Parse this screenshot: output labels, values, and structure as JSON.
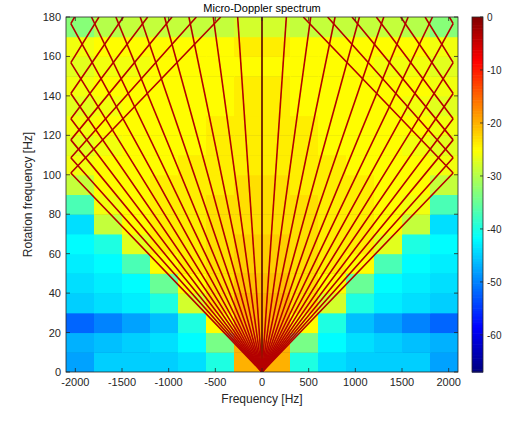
{
  "chart_data": {
    "type": "heatmap",
    "title": "Micro-Doppler spectrum",
    "x_label": "Frequency [Hz]",
    "y_label": "Rotation frequency [Hz]",
    "xlim": [
      -2100,
      2100
    ],
    "ylim": [
      0,
      180
    ],
    "xticks": [
      -2000,
      -1500,
      -1000,
      -500,
      0,
      500,
      1000,
      1500,
      2000
    ],
    "yticks": [
      0,
      20,
      40,
      60,
      80,
      100,
      120,
      140,
      160,
      180
    ],
    "grid": false,
    "clim": [
      -67,
      0
    ],
    "cticks": [
      0,
      -10,
      -20,
      -30,
      -40,
      -50,
      -60
    ],
    "x": [
      -1950,
      -1650,
      -1350,
      -1050,
      -750,
      -450,
      -150,
      150,
      450,
      750,
      1050,
      1350,
      1650,
      1950
    ],
    "y": [
      5,
      15,
      25,
      35,
      45,
      55,
      65,
      75,
      85,
      95,
      105,
      115,
      125,
      135,
      145,
      155,
      165,
      175
    ],
    "cells": [
      [
        -48,
        -45,
        -45,
        -45,
        -44,
        -40,
        -20,
        -20,
        -40,
        -44,
        -45,
        -45,
        -45,
        -48
      ],
      [
        -47,
        -46,
        -45,
        -44,
        -42,
        -34,
        -20,
        -20,
        -34,
        -42,
        -44,
        -45,
        -46,
        -47
      ],
      [
        -52,
        -50,
        -48,
        -46,
        -40,
        -25,
        -20,
        -20,
        -25,
        -40,
        -46,
        -48,
        -50,
        -52
      ],
      [
        -45,
        -44,
        -43,
        -40,
        -28,
        -23,
        -20,
        -20,
        -23,
        -28,
        -40,
        -43,
        -44,
        -45
      ],
      [
        -44,
        -43,
        -42,
        -35,
        -25,
        -23,
        -21,
        -21,
        -23,
        -25,
        -35,
        -42,
        -43,
        -44
      ],
      [
        -43,
        -42,
        -37,
        -25,
        -24,
        -23,
        -22,
        -22,
        -23,
        -24,
        -25,
        -37,
        -42,
        -43
      ],
      [
        -42,
        -40,
        -27,
        -24,
        -24,
        -23,
        -22,
        -22,
        -23,
        -24,
        -24,
        -27,
        -40,
        -42
      ],
      [
        -44,
        -29,
        -25,
        -24,
        -24,
        -23,
        -23,
        -23,
        -23,
        -24,
        -24,
        -25,
        -29,
        -44
      ],
      [
        -37,
        -26,
        -25,
        -24,
        -24,
        -23,
        -23,
        -23,
        -23,
        -24,
        -24,
        -25,
        -26,
        -37
      ],
      [
        -29,
        -25,
        -25,
        -24,
        -24,
        -24,
        -23,
        -23,
        -24,
        -24,
        -24,
        -25,
        -25,
        -29
      ],
      [
        -26,
        -25,
        -25,
        -25,
        -24,
        -24,
        -24,
        -24,
        -24,
        -24,
        -25,
        -25,
        -25,
        -26
      ],
      [
        -27,
        -26,
        -25,
        -25,
        -25,
        -24,
        -24,
        -24,
        -24,
        -25,
        -25,
        -25,
        -26,
        -27
      ],
      [
        -26,
        -25,
        -25,
        -25,
        -25,
        -24,
        -24,
        -24,
        -24,
        -25,
        -25,
        -25,
        -25,
        -26
      ],
      [
        -27,
        -26,
        -25,
        -25,
        -25,
        -25,
        -24,
        -24,
        -25,
        -25,
        -25,
        -25,
        -26,
        -27
      ],
      [
        -26,
        -25,
        -25,
        -25,
        -25,
        -25,
        -24,
        -24,
        -25,
        -25,
        -25,
        -25,
        -25,
        -26
      ],
      [
        -27,
        -26,
        -26,
        -25,
        -25,
        -25,
        -25,
        -25,
        -25,
        -25,
        -25,
        -26,
        -26,
        -27
      ],
      [
        -26,
        -25,
        -25,
        -25,
        -25,
        -25,
        -24,
        -24,
        -25,
        -25,
        -25,
        -25,
        -25,
        -26
      ],
      [
        -33,
        -30,
        -29,
        -29,
        -29,
        -29,
        -28,
        -28,
        -29,
        -29,
        -29,
        -29,
        -30,
        -33
      ]
    ],
    "series": [
      {
        "type": "line",
        "color": "#5a0000",
        "x": [
          0,
          0
        ],
        "values": [
          0,
          180
        ]
      },
      {
        "type": "line",
        "color": "#b40000",
        "x": [
          0,
          261
        ],
        "values": [
          0,
          180
        ]
      },
      {
        "type": "line",
        "color": "#b40000",
        "x": [
          0,
          522
        ],
        "values": [
          0,
          180
        ]
      },
      {
        "type": "line",
        "color": "#b40000",
        "x": [
          0,
          783
        ],
        "values": [
          0,
          180
        ]
      },
      {
        "type": "line",
        "color": "#b40000",
        "x": [
          0,
          1044
        ],
        "values": [
          0,
          180
        ]
      },
      {
        "type": "line",
        "color": "#b40000",
        "x": [
          0,
          1305
        ],
        "values": [
          0,
          180
        ]
      },
      {
        "type": "line",
        "color": "#b40000",
        "x": [
          0,
          1566
        ],
        "values": [
          0,
          180
        ]
      },
      {
        "type": "line",
        "color": "#b40000",
        "x": [
          0,
          1827
        ],
        "values": [
          0,
          180
        ]
      },
      {
        "type": "line",
        "color": "#b40000",
        "x": [
          0,
          2048,
          null,
          -2048,
          -2008
        ],
        "values": [
          0,
          176.6,
          null,
          176.6,
          180
        ]
      },
      {
        "type": "line",
        "color": "#b40000",
        "x": [
          0,
          2048,
          null,
          -2048,
          -1747
        ],
        "values": [
          0,
          156.9,
          null,
          156.9,
          180
        ]
      },
      {
        "type": "line",
        "color": "#b40000",
        "x": [
          0,
          2048,
          null,
          -2048,
          -1486
        ],
        "values": [
          0,
          141.2,
          null,
          141.2,
          180
        ]
      },
      {
        "type": "line",
        "color": "#b40000",
        "x": [
          0,
          2048,
          null,
          -2048,
          -1225
        ],
        "values": [
          0,
          128.4,
          null,
          128.4,
          180
        ]
      },
      {
        "type": "line",
        "color": "#b40000",
        "x": [
          0,
          2048,
          null,
          -2048,
          -964
        ],
        "values": [
          0,
          117.7,
          null,
          117.7,
          180
        ]
      },
      {
        "type": "line",
        "color": "#b40000",
        "x": [
          0,
          2048,
          null,
          -2048,
          -703
        ],
        "values": [
          0,
          108.6,
          null,
          108.6,
          180
        ]
      },
      {
        "type": "line",
        "color": "#b40000",
        "x": [
          0,
          2048,
          null,
          -2048,
          -442
        ],
        "values": [
          0,
          100.9,
          null,
          100.9,
          180
        ]
      },
      {
        "type": "line",
        "color": "#b40000",
        "x": [
          0,
          -261
        ],
        "values": [
          0,
          180
        ]
      },
      {
        "type": "line",
        "color": "#b40000",
        "x": [
          0,
          -522
        ],
        "values": [
          0,
          180
        ]
      },
      {
        "type": "line",
        "color": "#b40000",
        "x": [
          0,
          -783
        ],
        "values": [
          0,
          180
        ]
      },
      {
        "type": "line",
        "color": "#b40000",
        "x": [
          0,
          -1044
        ],
        "values": [
          0,
          180
        ]
      },
      {
        "type": "line",
        "color": "#b40000",
        "x": [
          0,
          -1305
        ],
        "values": [
          0,
          180
        ]
      },
      {
        "type": "line",
        "color": "#b40000",
        "x": [
          0,
          -1566
        ],
        "values": [
          0,
          180
        ]
      },
      {
        "type": "line",
        "color": "#b40000",
        "x": [
          0,
          -1827
        ],
        "values": [
          0,
          180
        ]
      },
      {
        "type": "line",
        "color": "#b40000",
        "x": [
          0,
          -2048,
          null,
          2048,
          2008
        ],
        "values": [
          0,
          176.6,
          null,
          176.6,
          180
        ]
      },
      {
        "type": "line",
        "color": "#b40000",
        "x": [
          0,
          -2048,
          null,
          2048,
          1747
        ],
        "values": [
          0,
          156.9,
          null,
          156.9,
          180
        ]
      },
      {
        "type": "line",
        "color": "#b40000",
        "x": [
          0,
          -2048,
          null,
          2048,
          1486
        ],
        "values": [
          0,
          141.2,
          null,
          141.2,
          180
        ]
      },
      {
        "type": "line",
        "color": "#b40000",
        "x": [
          0,
          -2048,
          null,
          2048,
          1225
        ],
        "values": [
          0,
          128.4,
          null,
          128.4,
          180
        ]
      },
      {
        "type": "line",
        "color": "#b40000",
        "x": [
          0,
          -2048,
          null,
          2048,
          964
        ],
        "values": [
          0,
          117.7,
          null,
          117.7,
          180
        ]
      },
      {
        "type": "line",
        "color": "#b40000",
        "x": [
          0,
          -2048,
          null,
          2048,
          703
        ],
        "values": [
          0,
          108.6,
          null,
          108.6,
          180
        ]
      },
      {
        "type": "line",
        "color": "#b40000",
        "x": [
          0,
          -2048,
          null,
          2048,
          442
        ],
        "values": [
          0,
          100.9,
          null,
          100.9,
          180
        ]
      }
    ]
  }
}
